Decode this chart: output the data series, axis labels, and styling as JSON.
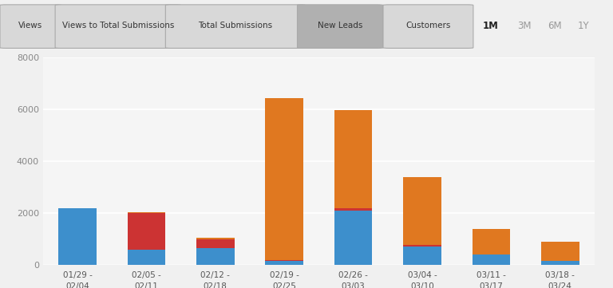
{
  "categories": [
    "01/29 -\n02/04",
    "02/05 -\n02/11",
    "02/12 -\n02/18",
    "02/19 -\n02/25",
    "02/26 -\n03/03",
    "03/04 -\n03/10",
    "03/11 -\n03/17",
    "03/18 -\n03/24"
  ],
  "blue_values": [
    2200,
    600,
    650,
    150,
    2100,
    700,
    400,
    150
  ],
  "red_values": [
    0,
    1400,
    350,
    50,
    80,
    80,
    0,
    0
  ],
  "orange_values": [
    0,
    30,
    60,
    6250,
    3800,
    2600,
    1000,
    750
  ],
  "blue_color": "#3d8fcc",
  "red_color": "#cc3333",
  "orange_color": "#e07820",
  "bg_color": "#f0f0f0",
  "plot_bg": "#f5f5f5",
  "grid_color": "#ffffff",
  "ylim": [
    0,
    8000
  ],
  "yticks": [
    0,
    2000,
    4000,
    6000,
    8000
  ],
  "tab_labels": [
    "Views",
    "Views to Total Submissions",
    "Total Submissions",
    "New Leads",
    "Customers"
  ],
  "active_tab": "New Leads",
  "time_labels": [
    "1M",
    "3M",
    "6M",
    "1Y"
  ],
  "active_time": "1M"
}
